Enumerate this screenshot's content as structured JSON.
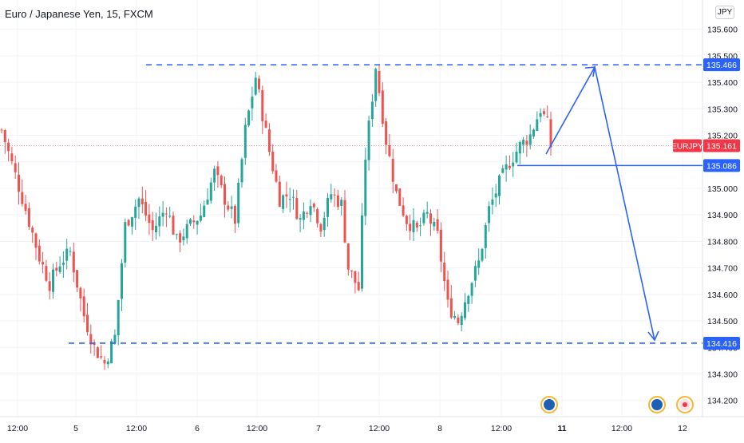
{
  "header": {
    "title": "Euro / Japanese Yen, 15, FXCM",
    "currency_button": "JPY"
  },
  "colors": {
    "up": "#26a69a",
    "down": "#ef5350",
    "drawing": "#2962ff",
    "price_label_bg": "#f23645",
    "level_label_bg": "#2962ff",
    "grid": "#f0f3fa",
    "axis_text": "#131722"
  },
  "chart_data": {
    "type": "candlestick",
    "title": "Euro / Japanese Yen, 15, FXCM",
    "symbol": "EURJPY",
    "last_price": 135.161,
    "ylim": [
      134.16,
      135.65
    ],
    "y_ticks": [
      135.6,
      135.5,
      135.4,
      135.3,
      135.2,
      135.1,
      135.0,
      134.9,
      134.8,
      134.7,
      134.6,
      134.5,
      134.4,
      134.3,
      134.2
    ],
    "y_tick_labels": [
      "135.600",
      "135.500",
      "135.400",
      "135.300",
      "135.200",
      "135.100",
      "135.000",
      "134.900",
      "134.800",
      "134.700",
      "134.600",
      "134.500",
      "134.400",
      "134.300",
      "134.200"
    ],
    "x_tick_labels": [
      "12:00",
      "5",
      "12:00",
      "6",
      "12:00",
      "7",
      "12:00",
      "8",
      "12:00",
      "11",
      "12:00",
      "12"
    ],
    "level_labels": {
      "upper": "135.466",
      "middle": "135.086",
      "lower": "134.416",
      "current": "135.161"
    },
    "levels": {
      "upper_resistance": 135.466,
      "breakout": 135.086,
      "lower_support": 134.416
    },
    "close_path": [
      [
        0,
        135.22
      ],
      [
        4,
        135.05
      ],
      [
        7,
        134.92
      ],
      [
        11,
        134.74
      ],
      [
        14,
        134.64
      ],
      [
        17,
        134.72
      ],
      [
        20,
        134.76
      ],
      [
        24,
        134.52
      ],
      [
        27,
        134.4
      ],
      [
        30,
        134.34
      ],
      [
        33,
        134.44
      ],
      [
        36,
        134.86
      ],
      [
        40,
        134.96
      ],
      [
        44,
        134.84
      ],
      [
        48,
        134.93
      ],
      [
        51,
        134.8
      ],
      [
        55,
        134.86
      ],
      [
        58,
        134.9
      ],
      [
        62,
        135.06
      ],
      [
        65,
        134.96
      ],
      [
        68,
        134.88
      ],
      [
        71,
        135.22
      ],
      [
        74,
        135.42
      ],
      [
        78,
        135.14
      ],
      [
        81,
        134.96
      ],
      [
        84,
        134.98
      ],
      [
        87,
        134.88
      ],
      [
        90,
        134.96
      ],
      [
        93,
        134.86
      ],
      [
        96,
        134.98
      ],
      [
        99,
        134.94
      ],
      [
        101,
        134.7
      ],
      [
        104,
        134.62
      ],
      [
        106,
        135.12
      ],
      [
        109,
        135.46
      ],
      [
        112,
        135.18
      ],
      [
        115,
        134.98
      ],
      [
        118,
        134.88
      ],
      [
        121,
        134.84
      ],
      [
        124,
        134.9
      ],
      [
        127,
        134.82
      ],
      [
        130,
        134.56
      ],
      [
        133,
        134.5
      ],
      [
        136,
        134.62
      ],
      [
        139,
        134.72
      ],
      [
        142,
        134.92
      ],
      [
        145,
        135.02
      ],
      [
        148,
        135.1
      ],
      [
        151,
        135.16
      ],
      [
        154,
        135.2
      ],
      [
        157,
        135.3
      ],
      [
        159,
        135.24
      ],
      [
        160,
        135.16
      ]
    ],
    "current_label": "EURJPY"
  }
}
